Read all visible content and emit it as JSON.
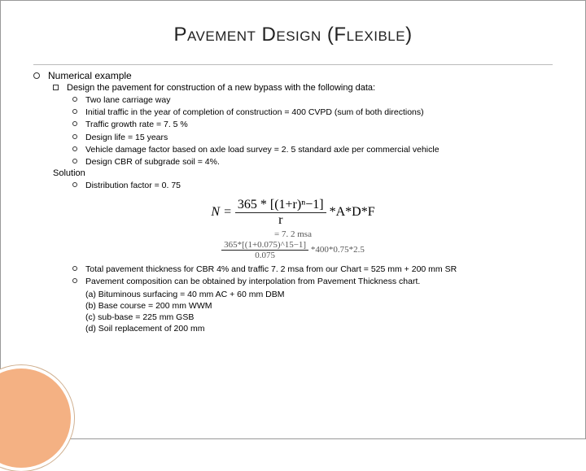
{
  "title": "Pavement Design (Flexible)",
  "l1": {
    "numerical": "Numerical example"
  },
  "l2": {
    "design_intro": "Design the pavement for construction of a new bypass with the following data:",
    "solution": "Solution"
  },
  "data_items": {
    "a": "Two lane carriage way",
    "b": "Initial traffic in the year of completion of construction = 400 CVPD (sum of both directions)",
    "c": "Traffic growth rate = 7. 5 %",
    "d": "Design life = 15 years",
    "e": "Vehicle damage factor based on axle load survey = 2. 5 standard axle per commercial vehicle",
    "f": "Design CBR of subgrade soil = 4%."
  },
  "solution_items": {
    "dist": "Distribution factor = 0. 75"
  },
  "formula": {
    "lhs": "N = ",
    "num": "365 * [(1+r)ⁿ−1]",
    "den": "r",
    "rhs": " *A*D*F",
    "line2": "= 7. 2 msa",
    "line3_num": "365*[(1+0.075)^15−1]",
    "line3_den": "0.075",
    "line3_rhs": "*400*0.75*2.5"
  },
  "results": {
    "thickness": "Total pavement thickness for CBR 4% and traffic 7. 2 msa from our Chart = 525 mm + 200 mm SR",
    "interp": "Pavement composition can be obtained by interpolation from Pavement Thickness chart.",
    "a": "(a) Bituminous surfacing = 40 mm AC + 60 mm DBM",
    "b": "(b) Base course = 200 mm WWM",
    "c": "(c) sub-base = 225 mm GSB",
    "d": "(d) Soil replacement of 200 mm"
  },
  "colors": {
    "accent": "#f4b183",
    "text": "#222222",
    "background": "#ffffff"
  }
}
